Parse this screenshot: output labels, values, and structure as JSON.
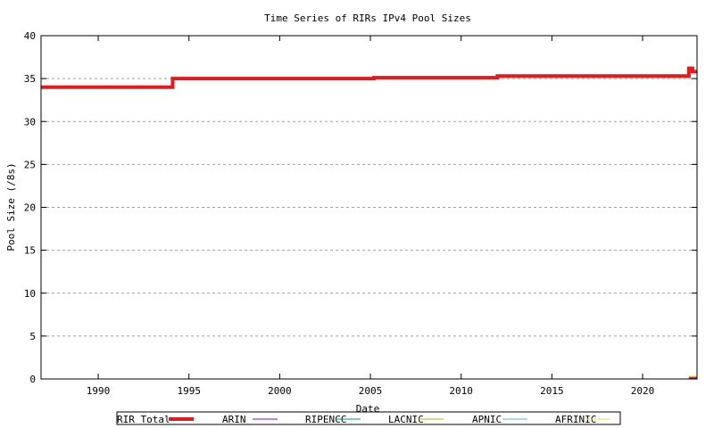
{
  "chart_data": {
    "type": "line",
    "title": "Time Series of RIRs IPv4 Pool Sizes",
    "xlabel": "Date",
    "ylabel": "Pool Size (/8s)",
    "xlim": [
      1986.85,
      2023.0
    ],
    "ylim": [
      0,
      40
    ],
    "xticks": [
      1990,
      1995,
      2000,
      2005,
      2010,
      2015,
      2020
    ],
    "yticks": [
      0,
      5,
      10,
      15,
      20,
      25,
      30,
      35,
      40
    ],
    "grid": true,
    "legend_position": "bottom",
    "series": [
      {
        "name": "RIR Total",
        "color": "#e41a1c",
        "step": true,
        "x": [
          1986.85,
          1994.1,
          2005.2,
          2012.0,
          2022.55,
          2022.75,
          2023.0
        ],
        "y": [
          34.0,
          35.0,
          35.1,
          35.3,
          36.2,
          35.8,
          35.8
        ]
      },
      {
        "name": "ARIN",
        "color": "#9400d3",
        "step": true,
        "x": [
          2022.55,
          2023.0
        ],
        "y": [
          0.1,
          0.1
        ]
      },
      {
        "name": "RIPENCC",
        "color": "#009e73",
        "step": true,
        "x": [
          2022.55,
          2023.0
        ],
        "y": [
          0.1,
          0.1
        ]
      },
      {
        "name": "LACNIC",
        "color": "#e69f00",
        "step": true,
        "x": [
          2022.55,
          2023.0
        ],
        "y": [
          0.2,
          0.2
        ]
      },
      {
        "name": "APNIC",
        "color": "#56b4e9",
        "step": true,
        "x": [
          2022.55,
          2023.0
        ],
        "y": [
          0.15,
          0.15
        ]
      },
      {
        "name": "AFRINIC",
        "color": "#f0e442",
        "step": true,
        "x": [
          2022.55,
          2023.0
        ],
        "y": [
          0.3,
          0.3
        ]
      }
    ]
  }
}
